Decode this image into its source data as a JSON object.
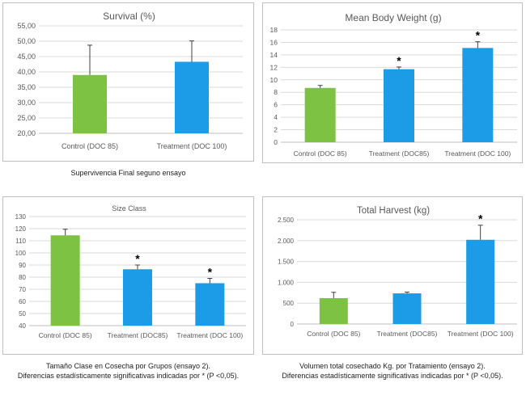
{
  "colors": {
    "control": "#7dc243",
    "treatment": "#1c9be6",
    "grid": "#d9d9d9",
    "axis": "#bfbfbf",
    "text": "#595959",
    "error": "#404040"
  },
  "chart_data": [
    {
      "type": "bar",
      "title": "Survival (%)",
      "categories": [
        "Control (DOC 85)",
        "Treatment (DOC 100)"
      ],
      "values": [
        39.0,
        43.3
      ],
      "errors": [
        9.7,
        6.8
      ],
      "significant": [
        false,
        false
      ],
      "ylim": [
        20,
        55
      ],
      "ystep": 5,
      "tick_decimals": 2,
      "tick_decimal_sep": ",",
      "grid": true,
      "xlabel": "",
      "ylabel": ""
    },
    {
      "type": "bar",
      "title": "Mean Body Weight (g)",
      "categories": [
        "Control (DOC 85)",
        "Treatment (DOC85)",
        "Treatment (DOC 100)"
      ],
      "values": [
        8.7,
        11.7,
        15.1
      ],
      "errors": [
        0.4,
        0.35,
        1.0
      ],
      "significant": [
        false,
        true,
        true
      ],
      "ylim": [
        0,
        18
      ],
      "ystep": 2,
      "tick_decimals": 0,
      "grid": true,
      "xlabel": "",
      "ylabel": ""
    },
    {
      "type": "bar",
      "title": "Size Class",
      "categories": [
        "Control (DOC 85)",
        "Treatment (DOC85)",
        "Treatment (DOC 100)"
      ],
      "values": [
        114.5,
        86.5,
        75.0
      ],
      "errors": [
        5.0,
        3.5,
        4.0
      ],
      "significant": [
        false,
        true,
        true
      ],
      "ylim": [
        40,
        130
      ],
      "ystep": 10,
      "tick_decimals": 0,
      "grid": true,
      "xlabel": "",
      "ylabel": ""
    },
    {
      "type": "bar",
      "title": "Total Harvest (kg)",
      "categories": [
        "Control (DOC 85)",
        "Treatment (DOC85)",
        "Treatment (DOC 100)"
      ],
      "values": [
        620,
        735,
        2020
      ],
      "errors": [
        140,
        30,
        350
      ],
      "significant": [
        false,
        false,
        true
      ],
      "ylim": [
        0,
        2500
      ],
      "ystep": 500,
      "tick_decimals": 0,
      "tick_thousands_sep": ".",
      "grid": true,
      "xlabel": "",
      "ylabel": ""
    }
  ],
  "captions": {
    "survival": [
      "Supervivencia Final seguno ensayo"
    ],
    "size_class": [
      "Tamaño Clase en Cosecha por Grupos (ensayo 2).",
      "Diferencias estadísticamente significativas indicadas por * (P <0,05)."
    ],
    "harvest": [
      "Volumen total cosechado Kg. por Tratamiento (ensayo 2).",
      "Diferencias estadísticamente significativas indicadas por * (P <0,05)."
    ]
  },
  "significance_marker": "*"
}
